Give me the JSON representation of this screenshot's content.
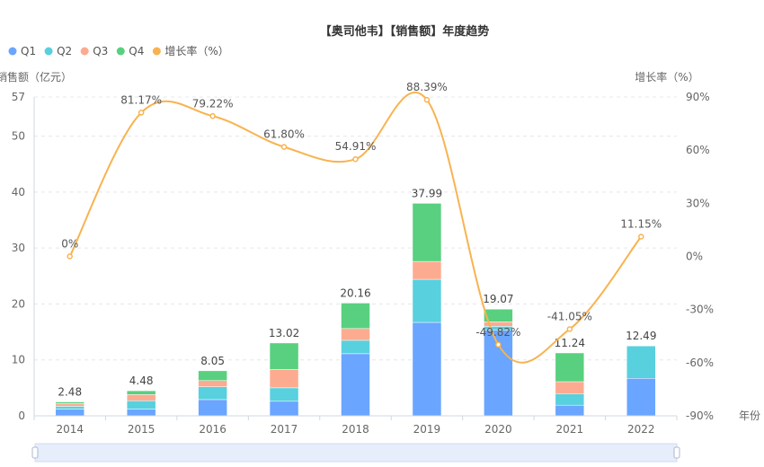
{
  "chart_data": {
    "type": "bar",
    "title": "【奥司他韦】【销售额】年度趋势",
    "xlabel": "年份",
    "ylabel": "销售额（亿元）",
    "y2label": "增长率（%）",
    "ylim": [
      0,
      57
    ],
    "y2lim": [
      -90,
      90
    ],
    "yticks": [
      0,
      10,
      20,
      30,
      40,
      50,
      57
    ],
    "y2ticks": [
      "-90%",
      "-60%",
      "-30%",
      "0%",
      "30%",
      "60%",
      "90%"
    ],
    "y2tick_values": [
      -90,
      -60,
      -30,
      0,
      30,
      60,
      90
    ],
    "legend_position": "top-left",
    "categories": [
      "2014",
      "2015",
      "2016",
      "2017",
      "2018",
      "2019",
      "2020",
      "2021",
      "2022"
    ],
    "series": [
      {
        "name": "Q1",
        "color": "#6aa5ff",
        "values": [
          1.2,
          1.2,
          2.9,
          2.6,
          11.1,
          16.7,
          15.3,
          1.9,
          6.7
        ]
      },
      {
        "name": "Q2",
        "color": "#58d0de",
        "values": [
          0.5,
          1.5,
          2.3,
          2.4,
          2.4,
          7.7,
          0.7,
          2.0,
          5.79
        ]
      },
      {
        "name": "Q3",
        "color": "#fdab90",
        "values": [
          0.5,
          1.1,
          1.1,
          3.3,
          2.1,
          3.2,
          0.8,
          2.2,
          0
        ]
      },
      {
        "name": "Q4",
        "color": "#59d07f",
        "values": [
          0.28,
          0.68,
          1.75,
          4.72,
          4.56,
          10.39,
          2.27,
          5.14,
          0
        ]
      }
    ],
    "totals": [
      "2.48",
      "4.48",
      "8.05",
      "13.02",
      "20.16",
      "37.99",
      "19.07",
      "11.24",
      "12.49"
    ],
    "growth": {
      "name": "增长率（%）",
      "color": "#f8b350",
      "values": [
        0,
        81.17,
        79.22,
        61.8,
        54.91,
        88.39,
        -49.82,
        -41.05,
        11.15
      ],
      "labels": [
        "0%",
        "81.17%",
        "79.22%",
        "61.80%",
        "54.91%",
        "88.39%",
        "-49.82%",
        "-41.05%",
        "11.15%"
      ]
    }
  }
}
